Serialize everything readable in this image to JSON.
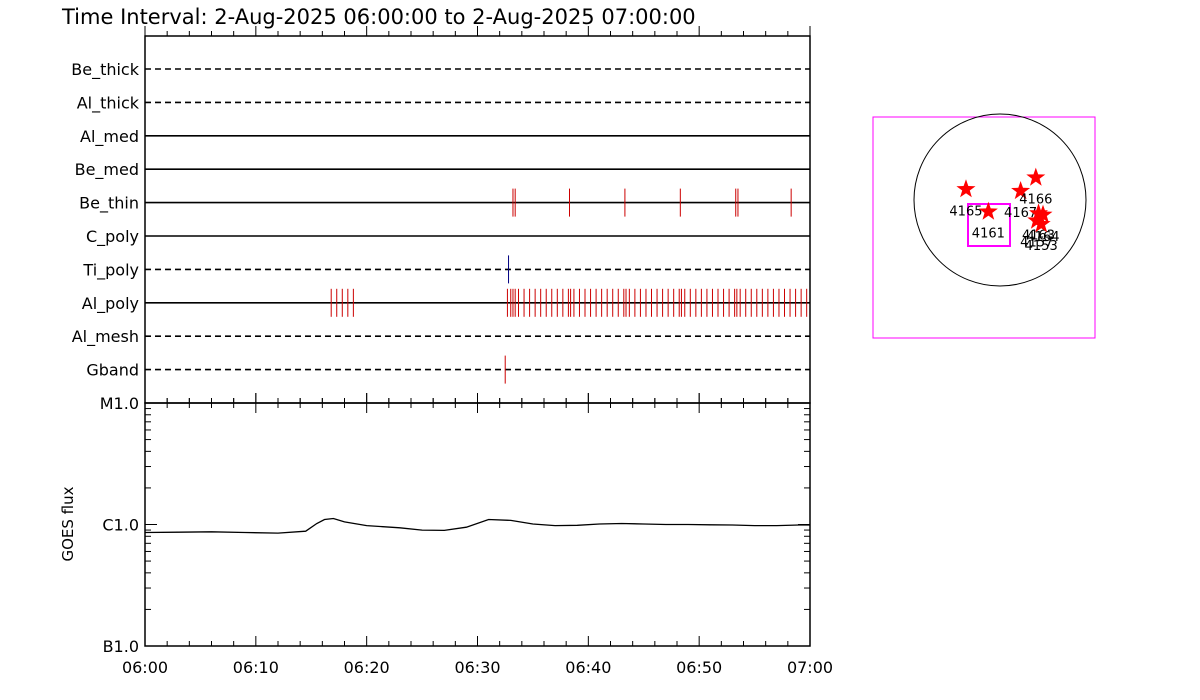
{
  "title": "Time Interval:  2-Aug-2025 06:00:00 to  2-Aug-2025 07:00:00",
  "colors": {
    "event_red": "#cc0000",
    "event_blue": "#000080",
    "star": "#ff0000",
    "box": "#ff00ff",
    "axis": "#000000"
  },
  "chart_data": [
    {
      "type": "timeline",
      "x_ticks": [
        "06:00",
        "06:10",
        "06:20",
        "06:30",
        "06:40",
        "06:50",
        "07:00"
      ],
      "xlim_minutes": [
        0,
        60
      ],
      "rows": [
        {
          "label": "Be_thick",
          "style": "dashed",
          "events": []
        },
        {
          "label": "Al_thick",
          "style": "dashed",
          "events": []
        },
        {
          "label": "Al_med",
          "style": "solid",
          "events": []
        },
        {
          "label": "Be_med",
          "style": "solid",
          "events": []
        },
        {
          "label": "Be_thin",
          "style": "solid",
          "color": "red",
          "events": [
            33.2,
            33.4,
            38.3,
            43.3,
            48.3,
            53.3,
            53.5,
            58.3
          ]
        },
        {
          "label": "C_poly",
          "style": "solid",
          "events": []
        },
        {
          "label": "Ti_poly",
          "style": "dashed",
          "color": "blue",
          "events": [
            32.8
          ]
        },
        {
          "label": "Al_poly",
          "style": "solid",
          "color": "red",
          "events": [
            16.8,
            17.3,
            17.8,
            18.3,
            18.8,
            32.7,
            33.0,
            33.2,
            33.4,
            33.7,
            34.2,
            34.7,
            35.2,
            35.7,
            36.2,
            36.7,
            37.2,
            37.7,
            38.2,
            38.4,
            38.7,
            39.2,
            39.7,
            40.2,
            40.7,
            41.2,
            41.7,
            42.2,
            42.7,
            43.2,
            43.4,
            43.7,
            44.2,
            44.7,
            45.2,
            45.7,
            46.2,
            46.7,
            47.2,
            47.7,
            48.2,
            48.4,
            48.7,
            49.2,
            49.7,
            50.2,
            50.7,
            51.2,
            51.7,
            52.2,
            52.7,
            53.2,
            53.4,
            53.7,
            54.2,
            54.7,
            55.2,
            55.7,
            56.2,
            56.7,
            57.2,
            57.7,
            58.2,
            58.7,
            59.2,
            59.7
          ]
        },
        {
          "label": "Al_mesh",
          "style": "dashed",
          "events": []
        },
        {
          "label": "Gband",
          "style": "dashed",
          "color": "red",
          "events": [
            32.5
          ]
        }
      ]
    },
    {
      "type": "line",
      "ylabel": "GOES flux",
      "yscale": "log",
      "y_ticks": [
        "M1.0",
        "C1.0",
        "B1.0"
      ],
      "ylim": [
        "B1.0",
        "M1.0"
      ],
      "x_ticks": [
        "06:00",
        "06:10",
        "06:20",
        "06:30",
        "06:40",
        "06:50",
        "07:00"
      ],
      "series": [
        {
          "x": [
            0,
            3,
            6,
            9,
            12,
            14.5,
            15.5,
            16.2,
            17,
            18,
            20,
            23,
            25,
            27,
            29,
            31,
            33,
            35,
            37,
            39,
            41,
            43,
            45,
            47,
            49,
            51,
            53,
            55,
            57,
            59,
            60
          ],
          "y": [
            8.6e-07,
            8.65e-07,
            8.7e-07,
            8.6e-07,
            8.5e-07,
            8.8e-07,
            1.02e-06,
            1.1e-06,
            1.12e-06,
            1.05e-06,
            9.8e-07,
            9.4e-07,
            9e-07,
            8.95e-07,
            9.5e-07,
            1.1e-06,
            1.08e-06,
            1.01e-06,
            9.8e-07,
            9.85e-07,
            1.01e-06,
            1.02e-06,
            1.01e-06,
            1e-06,
            1e-06,
            9.95e-07,
            9.9e-07,
            9.8e-07,
            9.8e-07,
            9.9e-07,
            9.9e-07
          ]
        }
      ]
    },
    {
      "type": "scatter",
      "points": [
        {
          "label": "4165",
          "x": -380,
          "y": 120
        },
        {
          "label": "4161",
          "x": -130,
          "y": -130
        },
        {
          "label": "4167",
          "x": 230,
          "y": 100
        },
        {
          "label": "4166",
          "x": 400,
          "y": 250
        },
        {
          "label": "4163",
          "x": 430,
          "y": -150
        },
        {
          "label": "4164",
          "x": 480,
          "y": -165
        },
        {
          "label": "4157",
          "x": 410,
          "y": -230
        },
        {
          "label": "4153",
          "x": 460,
          "y": -270
        }
      ]
    }
  ]
}
